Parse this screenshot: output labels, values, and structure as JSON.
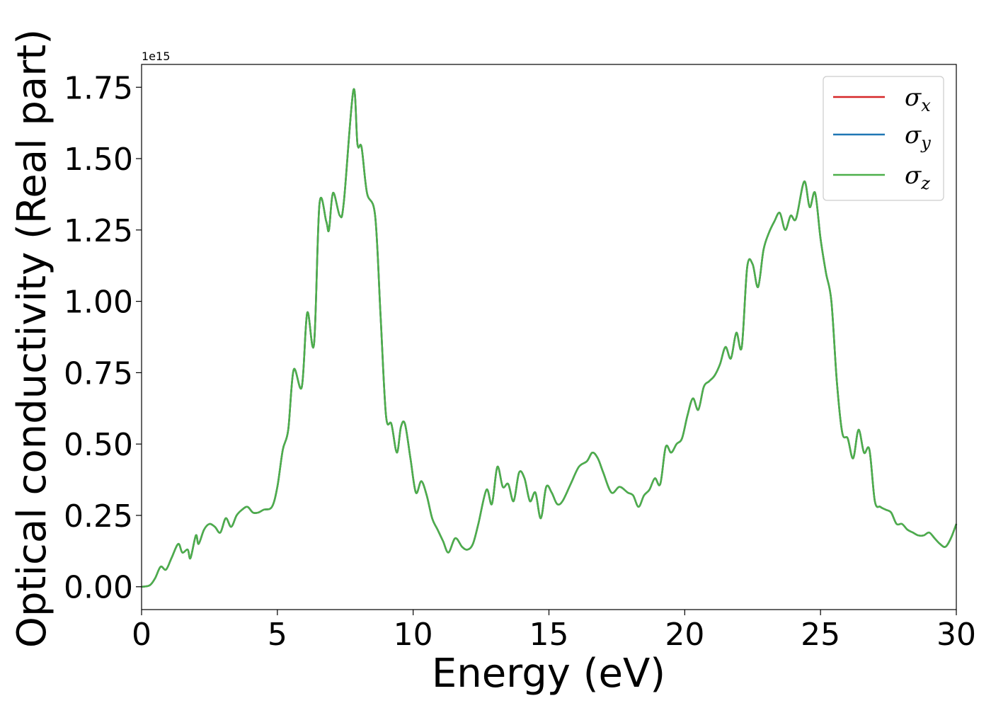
{
  "chart_data": {
    "type": "line",
    "xlabel": "Energy (eV)",
    "ylabel": "Optical conductivity (Real part)",
    "y_exponent_label": "1e15",
    "y_scale": 1000000000000000.0,
    "xlim": [
      0,
      30
    ],
    "ylim": [
      -0.08,
      1.83
    ],
    "xticks": [
      0,
      5,
      10,
      15,
      20,
      25,
      30
    ],
    "xtick_labels": [
      "0",
      "5",
      "10",
      "15",
      "20",
      "25",
      "30"
    ],
    "yticks": [
      0.0,
      0.25,
      0.5,
      0.75,
      1.0,
      1.25,
      1.5,
      1.75
    ],
    "ytick_labels": [
      "0.00",
      "0.25",
      "0.50",
      "0.75",
      "1.00",
      "1.25",
      "1.50",
      "1.75"
    ],
    "grid": false,
    "legend_position": "top-right",
    "colors": {
      "sigma_x": "#d62728",
      "sigma_y": "#1f77b4",
      "sigma_z": "#4daf4a"
    },
    "x": [
      0.0,
      0.3,
      0.5,
      0.7,
      0.9,
      1.1,
      1.35,
      1.5,
      1.7,
      1.8,
      2.0,
      2.1,
      2.3,
      2.5,
      2.7,
      2.9,
      3.1,
      3.3,
      3.5,
      3.7,
      3.9,
      4.1,
      4.3,
      4.5,
      4.8,
      5.0,
      5.2,
      5.4,
      5.6,
      5.9,
      6.1,
      6.35,
      6.55,
      6.8,
      6.9,
      7.05,
      7.3,
      7.45,
      7.8,
      7.95,
      8.1,
      8.3,
      8.6,
      8.8,
      9.0,
      9.2,
      9.4,
      9.55,
      9.7,
      9.9,
      10.1,
      10.3,
      10.5,
      10.7,
      10.9,
      11.1,
      11.3,
      11.55,
      11.8,
      12.0,
      12.2,
      12.4,
      12.7,
      12.9,
      13.1,
      13.3,
      13.5,
      13.7,
      13.9,
      14.1,
      14.3,
      14.5,
      14.7,
      14.9,
      15.1,
      15.3,
      15.5,
      15.8,
      16.1,
      16.4,
      16.6,
      16.8,
      17.0,
      17.3,
      17.6,
      17.9,
      18.1,
      18.3,
      18.5,
      18.7,
      18.9,
      19.1,
      19.3,
      19.5,
      19.7,
      19.9,
      20.1,
      20.3,
      20.5,
      20.7,
      20.9,
      21.1,
      21.3,
      21.5,
      21.7,
      21.9,
      22.1,
      22.3,
      22.5,
      22.7,
      22.9,
      23.1,
      23.3,
      23.5,
      23.7,
      23.9,
      24.1,
      24.4,
      24.6,
      24.8,
      25.0,
      25.2,
      25.4,
      25.6,
      25.8,
      26.0,
      26.2,
      26.4,
      26.6,
      26.8,
      27.0,
      27.2,
      27.4,
      27.6,
      27.8,
      28.0,
      28.2,
      28.4,
      28.6,
      28.8,
      29.0,
      29.2,
      29.4,
      29.6,
      29.8,
      30.0
    ],
    "series": [
      {
        "name": "σ_x",
        "values": [
          0.0,
          0.005,
          0.03,
          0.07,
          0.06,
          0.1,
          0.15,
          0.12,
          0.13,
          0.1,
          0.18,
          0.15,
          0.2,
          0.22,
          0.21,
          0.19,
          0.24,
          0.21,
          0.25,
          0.27,
          0.28,
          0.26,
          0.26,
          0.27,
          0.28,
          0.35,
          0.48,
          0.55,
          0.76,
          0.7,
          0.96,
          0.85,
          1.34,
          1.28,
          1.25,
          1.38,
          1.3,
          1.35,
          1.74,
          1.55,
          1.54,
          1.38,
          1.3,
          0.95,
          0.6,
          0.57,
          0.47,
          0.56,
          0.57,
          0.45,
          0.33,
          0.37,
          0.32,
          0.24,
          0.2,
          0.16,
          0.12,
          0.17,
          0.14,
          0.13,
          0.15,
          0.22,
          0.34,
          0.29,
          0.42,
          0.35,
          0.36,
          0.3,
          0.4,
          0.38,
          0.3,
          0.33,
          0.24,
          0.35,
          0.33,
          0.29,
          0.3,
          0.36,
          0.42,
          0.44,
          0.47,
          0.45,
          0.4,
          0.33,
          0.35,
          0.33,
          0.32,
          0.28,
          0.32,
          0.34,
          0.38,
          0.36,
          0.49,
          0.47,
          0.5,
          0.52,
          0.6,
          0.66,
          0.62,
          0.7,
          0.72,
          0.74,
          0.78,
          0.84,
          0.8,
          0.89,
          0.84,
          1.12,
          1.13,
          1.05,
          1.18,
          1.24,
          1.28,
          1.31,
          1.25,
          1.3,
          1.29,
          1.42,
          1.33,
          1.38,
          1.22,
          1.1,
          1.0,
          0.72,
          0.54,
          0.52,
          0.45,
          0.55,
          0.47,
          0.48,
          0.3,
          0.28,
          0.27,
          0.26,
          0.22,
          0.22,
          0.2,
          0.19,
          0.18,
          0.18,
          0.19,
          0.17,
          0.15,
          0.14,
          0.17,
          0.22
        ]
      },
      {
        "name": "σ_y",
        "values": [
          0.0,
          0.005,
          0.03,
          0.07,
          0.06,
          0.1,
          0.15,
          0.12,
          0.13,
          0.1,
          0.18,
          0.15,
          0.2,
          0.22,
          0.21,
          0.19,
          0.24,
          0.21,
          0.25,
          0.27,
          0.28,
          0.26,
          0.26,
          0.27,
          0.28,
          0.35,
          0.48,
          0.55,
          0.76,
          0.7,
          0.96,
          0.85,
          1.34,
          1.28,
          1.25,
          1.38,
          1.3,
          1.35,
          1.74,
          1.55,
          1.54,
          1.38,
          1.3,
          0.95,
          0.6,
          0.57,
          0.47,
          0.56,
          0.57,
          0.45,
          0.33,
          0.37,
          0.32,
          0.24,
          0.2,
          0.16,
          0.12,
          0.17,
          0.14,
          0.13,
          0.15,
          0.22,
          0.34,
          0.29,
          0.42,
          0.35,
          0.36,
          0.3,
          0.4,
          0.38,
          0.3,
          0.33,
          0.24,
          0.35,
          0.33,
          0.29,
          0.3,
          0.36,
          0.42,
          0.44,
          0.47,
          0.45,
          0.4,
          0.33,
          0.35,
          0.33,
          0.32,
          0.28,
          0.32,
          0.34,
          0.38,
          0.36,
          0.49,
          0.47,
          0.5,
          0.52,
          0.6,
          0.66,
          0.62,
          0.7,
          0.72,
          0.74,
          0.78,
          0.84,
          0.8,
          0.89,
          0.84,
          1.12,
          1.13,
          1.05,
          1.18,
          1.24,
          1.28,
          1.31,
          1.25,
          1.3,
          1.29,
          1.42,
          1.33,
          1.38,
          1.22,
          1.1,
          1.0,
          0.72,
          0.54,
          0.52,
          0.45,
          0.55,
          0.47,
          0.48,
          0.3,
          0.28,
          0.27,
          0.26,
          0.22,
          0.22,
          0.2,
          0.19,
          0.18,
          0.18,
          0.19,
          0.17,
          0.15,
          0.14,
          0.17,
          0.22
        ]
      },
      {
        "name": "σ_z",
        "values": [
          0.0,
          0.005,
          0.03,
          0.07,
          0.06,
          0.1,
          0.15,
          0.12,
          0.13,
          0.1,
          0.18,
          0.15,
          0.2,
          0.22,
          0.21,
          0.19,
          0.24,
          0.21,
          0.25,
          0.27,
          0.28,
          0.26,
          0.26,
          0.27,
          0.28,
          0.35,
          0.48,
          0.55,
          0.76,
          0.7,
          0.96,
          0.85,
          1.34,
          1.28,
          1.25,
          1.38,
          1.3,
          1.35,
          1.74,
          1.55,
          1.54,
          1.38,
          1.3,
          0.95,
          0.6,
          0.57,
          0.47,
          0.56,
          0.57,
          0.45,
          0.33,
          0.37,
          0.32,
          0.24,
          0.2,
          0.16,
          0.12,
          0.17,
          0.14,
          0.13,
          0.15,
          0.22,
          0.34,
          0.29,
          0.42,
          0.35,
          0.36,
          0.3,
          0.4,
          0.38,
          0.3,
          0.33,
          0.24,
          0.35,
          0.33,
          0.29,
          0.3,
          0.36,
          0.42,
          0.44,
          0.47,
          0.45,
          0.4,
          0.33,
          0.35,
          0.33,
          0.32,
          0.28,
          0.32,
          0.34,
          0.38,
          0.36,
          0.49,
          0.47,
          0.5,
          0.52,
          0.6,
          0.66,
          0.62,
          0.7,
          0.72,
          0.74,
          0.78,
          0.84,
          0.8,
          0.89,
          0.84,
          1.12,
          1.13,
          1.05,
          1.18,
          1.24,
          1.28,
          1.31,
          1.25,
          1.3,
          1.29,
          1.42,
          1.33,
          1.38,
          1.22,
          1.1,
          1.0,
          0.72,
          0.54,
          0.52,
          0.45,
          0.55,
          0.47,
          0.48,
          0.3,
          0.28,
          0.27,
          0.26,
          0.22,
          0.22,
          0.2,
          0.19,
          0.18,
          0.18,
          0.19,
          0.17,
          0.15,
          0.14,
          0.17,
          0.22
        ]
      }
    ],
    "legend": [
      {
        "symbol": "σ",
        "subscript": "x",
        "color": "#d62728"
      },
      {
        "symbol": "σ",
        "subscript": "y",
        "color": "#1f77b4"
      },
      {
        "symbol": "σ",
        "subscript": "z",
        "color": "#4daf4a"
      }
    ]
  }
}
